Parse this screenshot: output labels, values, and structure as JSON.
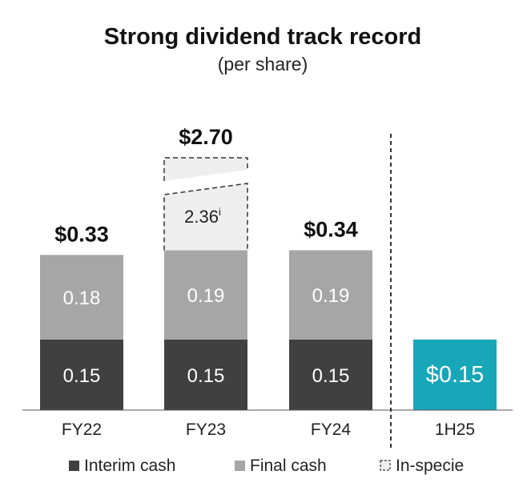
{
  "chart_data": {
    "type": "bar",
    "stacked": true,
    "title": "Strong dividend track record",
    "subtitle": "(per share)",
    "categories": [
      "FY22",
      "FY23",
      "FY24",
      "1H25"
    ],
    "series": [
      {
        "name": "Interim cash",
        "color": "#404040",
        "values": [
          0.15,
          0.15,
          0.15,
          0.15
        ]
      },
      {
        "name": "Final cash",
        "color": "#a6a6a6",
        "values": [
          0.18,
          0.19,
          0.19,
          null
        ]
      },
      {
        "name": "In-specie",
        "color": "#eeeeee",
        "values": [
          null,
          2.36,
          null,
          null
        ]
      }
    ],
    "segment_labels": {
      "interim": [
        "0.15",
        "0.15",
        "0.15",
        "$0.15"
      ],
      "final": [
        "0.18",
        "0.19",
        "0.19",
        ""
      ],
      "inspecie": [
        "",
        "2.36",
        "",
        ""
      ],
      "inspecie_marker": "i"
    },
    "totals": [
      "$0.33",
      "$2.70",
      "$0.34",
      ""
    ],
    "highlight": {
      "category": "1H25",
      "color": "#17a7b8"
    },
    "axis_break": {
      "category": "FY23",
      "series": "In-specie"
    },
    "separator_before": "1H25",
    "legend": {
      "position": "bottom",
      "entries": [
        "Interim cash",
        "Final cash",
        "In-specie"
      ]
    }
  }
}
